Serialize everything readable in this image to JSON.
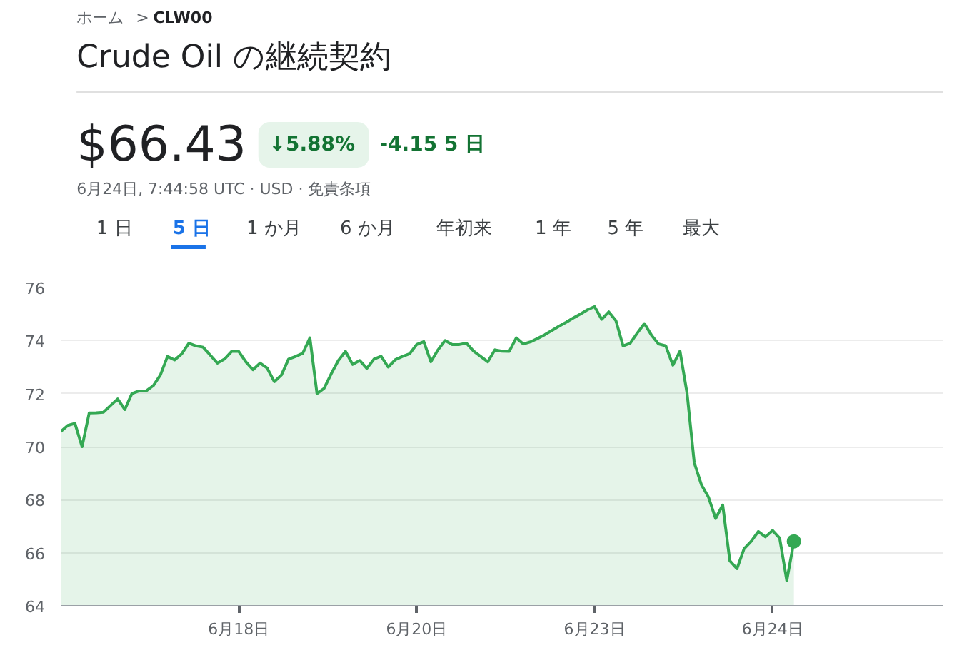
{
  "chart_data": {
    "type": "area",
    "title": "Crude Oil の継続契約",
    "annotations": [
      "ホーム",
      ">",
      "CLW00",
      "$66.43",
      "↓5.88%",
      "-4.15 5 日",
      "6月24日, 7:44:58 UTC · USD · 免責条項",
      "1 日",
      "5 日",
      "1 か月",
      "6 か月",
      "年初来",
      "1 年",
      "5 年",
      "最大"
    ],
    "categories": [
      null,
      null,
      null,
      null,
      null,
      null,
      null,
      null,
      null,
      null,
      null,
      null,
      null,
      null,
      null,
      null,
      null,
      null,
      null,
      null,
      null,
      null,
      null,
      null,
      null,
      "6月18日",
      null,
      null,
      null,
      null,
      null,
      null,
      null,
      null,
      null,
      null,
      null,
      null,
      null,
      null,
      null,
      null,
      null,
      null,
      null,
      null,
      null,
      null,
      null,
      null,
      "6月20日",
      null,
      null,
      null,
      null,
      null,
      null,
      null,
      null,
      null,
      null,
      null,
      null,
      null,
      null,
      null,
      null,
      null,
      null,
      null,
      null,
      null,
      null,
      null,
      null,
      "6月23日",
      null,
      null,
      null,
      null,
      null,
      null,
      null,
      null,
      null,
      null,
      null,
      null,
      null,
      null,
      null,
      null,
      null,
      null,
      null,
      null,
      null,
      null,
      null,
      null,
      "6月24日",
      null,
      null,
      null,
      null,
      null,
      null,
      null,
      null,
      null,
      null,
      null,
      null,
      null,
      null,
      null,
      null,
      null,
      null,
      null,
      null,
      null,
      null,
      null,
      null
    ],
    "series": [
      {
        "color": "#34a853",
        "values": [
          70.57,
          70.8,
          70.88,
          70.0,
          71.27,
          71.28,
          71.3,
          71.55,
          71.8,
          71.4,
          72.0,
          72.1,
          72.1,
          72.3,
          72.7,
          73.4,
          73.27,
          73.5,
          73.9,
          73.8,
          73.75,
          73.45,
          73.15,
          73.3,
          73.59,
          73.59,
          73.2,
          72.9,
          73.15,
          72.96,
          72.45,
          72.7,
          73.3,
          73.4,
          73.52,
          74.1,
          72.0,
          72.2,
          72.75,
          73.25,
          73.59,
          73.1,
          73.25,
          72.95,
          73.3,
          73.41,
          73.0,
          73.28,
          73.4,
          73.5,
          73.85,
          73.96,
          73.2,
          73.65,
          74.0,
          73.85,
          73.85,
          73.9,
          73.6,
          73.4,
          73.2,
          73.65,
          73.6,
          73.59,
          74.1,
          73.87,
          73.95,
          74.08,
          74.22,
          74.38,
          74.54,
          74.69,
          74.85,
          75.0,
          75.16,
          75.28,
          74.8,
          75.08,
          74.75,
          73.8,
          73.9,
          74.28,
          74.64,
          74.2,
          73.87,
          73.8,
          73.07,
          73.6,
          72.0,
          69.4,
          68.57,
          68.1,
          67.29,
          67.8,
          65.7,
          65.4,
          66.15,
          66.43,
          66.8,
          66.6,
          66.84,
          66.55,
          64.95,
          66.43,
          null,
          null,
          null,
          null,
          null,
          null,
          null,
          null,
          null,
          null,
          null,
          null,
          null,
          null,
          null,
          null,
          null,
          null,
          null,
          null,
          null
        ]
      }
    ],
    "ylim": [
      64,
      76
    ],
    "yticks": [
      64,
      66,
      68,
      70,
      72,
      74,
      76
    ],
    "grid": "y"
  }
}
